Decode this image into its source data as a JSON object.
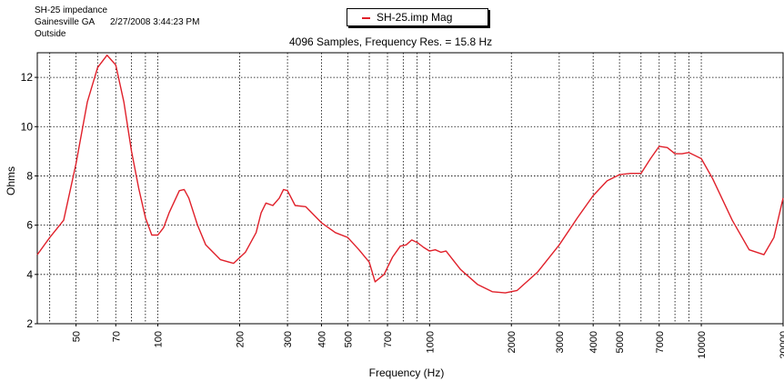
{
  "header": {
    "line1": "SH-25 impedance",
    "line2": "Gainesville GA",
    "timestamp": "2/27/2008 3:44:23 PM",
    "line3": "Outside"
  },
  "legend": {
    "label": "SH-25.imp Mag",
    "color": "#e0202a"
  },
  "subtitle": "4096 Samples, Frequency Res. = 15.8 Hz",
  "chart_data": {
    "type": "line",
    "xlabel": "Frequency (Hz)",
    "ylabel": "Ohms",
    "xscale": "log",
    "xlim": [
      36,
      20000
    ],
    "ylim": [
      2,
      13
    ],
    "x_ticks": [
      50,
      70,
      100,
      200,
      300,
      400,
      500,
      700,
      1000,
      2000,
      3000,
      4000,
      5000,
      7000,
      10000,
      20000
    ],
    "x_tick_labels": [
      "50",
      "70",
      "100",
      "200",
      "300",
      "400",
      "500",
      "700",
      "1000",
      "2000",
      "3000",
      "4000",
      "5000",
      "7000",
      "10000",
      "20000"
    ],
    "y_ticks": [
      2,
      4,
      6,
      8,
      10,
      12
    ],
    "y_tick_labels": [
      "2",
      "4",
      "6",
      "8",
      "10",
      "12"
    ],
    "grid": true,
    "series": [
      {
        "name": "SH-25.imp Mag",
        "color": "#e0202a",
        "x": [
          36,
          40,
          45,
          50,
          55,
          60,
          65,
          70,
          75,
          80,
          85,
          90,
          95,
          100,
          105,
          110,
          120,
          125,
          130,
          140,
          150,
          170,
          190,
          210,
          230,
          240,
          250,
          265,
          280,
          290,
          300,
          320,
          350,
          400,
          450,
          500,
          550,
          600,
          630,
          680,
          730,
          780,
          820,
          860,
          900,
          950,
          1000,
          1050,
          1100,
          1150,
          1300,
          1500,
          1700,
          1900,
          2100,
          2500,
          3000,
          3500,
          4000,
          4500,
          5000,
          5500,
          6000,
          6500,
          7000,
          7500,
          8000,
          8500,
          9000,
          10000,
          11000,
          13000,
          15000,
          17000,
          18500,
          20000
        ],
        "y": [
          4.8,
          5.5,
          6.2,
          8.5,
          11.0,
          12.4,
          12.9,
          12.5,
          11.0,
          9.0,
          7.5,
          6.3,
          5.6,
          5.6,
          5.9,
          6.5,
          7.4,
          7.45,
          7.1,
          6.0,
          5.2,
          4.6,
          4.45,
          4.9,
          5.7,
          6.5,
          6.9,
          6.8,
          7.1,
          7.45,
          7.4,
          6.8,
          6.75,
          6.1,
          5.7,
          5.5,
          5.0,
          4.5,
          3.7,
          4.0,
          4.7,
          5.15,
          5.2,
          5.4,
          5.3,
          5.1,
          4.95,
          5.0,
          4.9,
          4.95,
          4.2,
          3.6,
          3.3,
          3.25,
          3.35,
          4.1,
          5.2,
          6.3,
          7.2,
          7.8,
          8.05,
          8.1,
          8.1,
          8.7,
          9.2,
          9.15,
          8.9,
          8.9,
          8.95,
          8.7,
          7.9,
          6.2,
          5.0,
          4.8,
          5.5,
          7.1
        ]
      }
    ]
  }
}
